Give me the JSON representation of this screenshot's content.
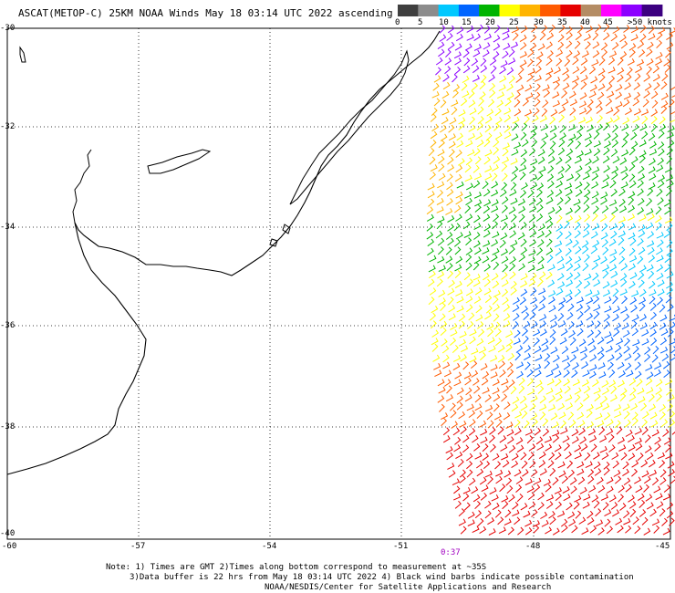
{
  "header": {
    "title": "ASCAT(METOP-C) 25KM NOAA Winds May 18 03:14 UTC 2022 ascending"
  },
  "colorbar": {
    "labels": [
      "0",
      "5",
      "10",
      "15",
      "20",
      "25",
      "30",
      "35",
      "40",
      "45",
      ">50 knots"
    ],
    "colors": [
      "#3f3f3f",
      "#8c8c8c",
      "#00c8ff",
      "#0064ff",
      "#00b400",
      "#ffff00",
      "#ffb400",
      "#ff5a00",
      "#e60000",
      "#b48c64",
      "#ff00ff",
      "#8c00ff",
      "#3c0080"
    ]
  },
  "map": {
    "lat_labels": [
      "-30",
      "-32",
      "-34",
      "-36",
      "-38",
      "-40"
    ],
    "lon_labels": [
      "-60",
      "-57",
      "-54",
      "-51",
      "-48",
      "-45"
    ],
    "time_label": "0:37"
  },
  "notes": {
    "line1": "Note: 1) Times are GMT 2)Times along bottom correspond to measurement at ~35S",
    "line2": "3)Data buffer is 22 hrs from May 18 03:14 UTC 2022 4) Black wind barbs indicate possible contamination",
    "line3": "NOAA/NESDIS/Center for Satellite Applications and Research"
  }
}
